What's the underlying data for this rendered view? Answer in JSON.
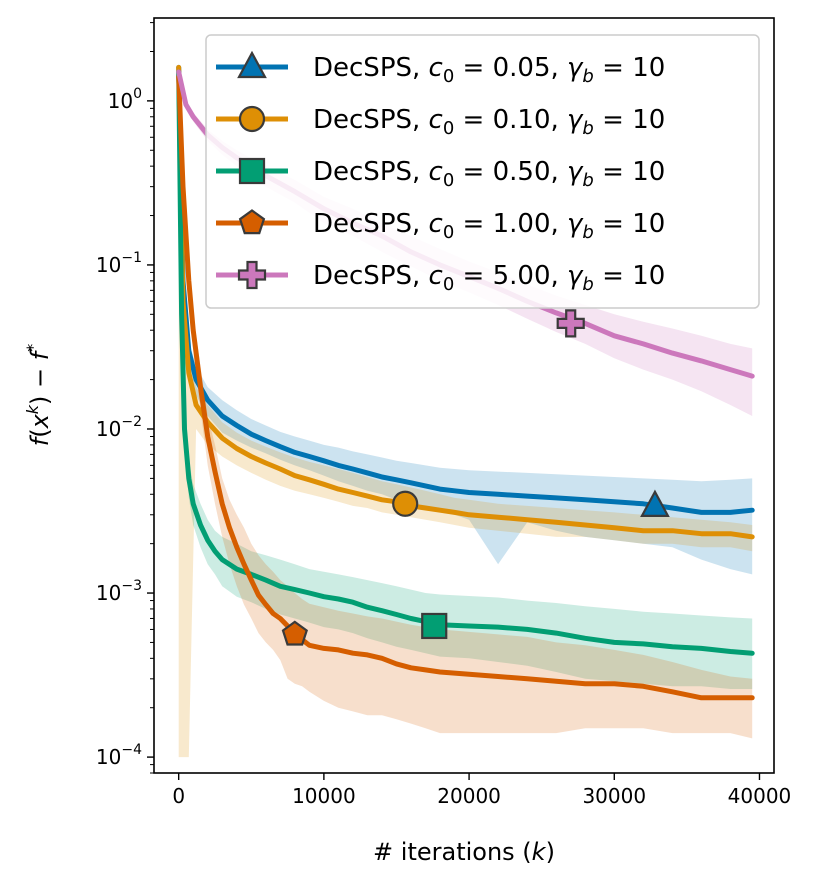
{
  "chart_data": {
    "type": "line",
    "xlabel": "# iterations (k)",
    "ylabel": "f(x^k) − f*",
    "xlim": [
      -1700,
      41000
    ],
    "ylim": [
      8e-05,
      3.2
    ],
    "yscale": "log",
    "x_ticks": [
      0,
      10000,
      20000,
      30000,
      40000
    ],
    "y_ticks": [
      {
        "value": 1,
        "base": "10",
        "exp": "0"
      },
      {
        "value": 0.1,
        "base": "10",
        "exp": "−1"
      },
      {
        "value": 0.01,
        "base": "10",
        "exp": "−2"
      },
      {
        "value": 0.001,
        "base": "10",
        "exp": "−3"
      },
      {
        "value": 0.0001,
        "base": "10",
        "exp": "−4"
      }
    ],
    "legend_position": "top-right",
    "grid": false,
    "series": [
      {
        "name": "DecSPS, c0 = 0.05, γb = 10",
        "legend_parts": {
          "name": "DecSPS",
          "c0": "0.05",
          "gamma": "10"
        },
        "color": "#0173b2",
        "marker": "triangle",
        "marker_at": [
          32800,
          0.0034
        ],
        "x": [
          0,
          300,
          700,
          1200,
          2000,
          3000,
          4000,
          5000,
          6000,
          7000,
          8000,
          9000,
          10000,
          11000,
          12000,
          13000,
          14000,
          15000,
          16000,
          17000,
          18000,
          19000,
          20000,
          22000,
          24000,
          26000,
          28000,
          30000,
          32000,
          34000,
          36000,
          38000,
          39500
        ],
        "y": [
          1.6,
          0.08,
          0.03,
          0.02,
          0.015,
          0.012,
          0.0105,
          0.0093,
          0.0085,
          0.0078,
          0.0072,
          0.0068,
          0.0064,
          0.006,
          0.0057,
          0.0054,
          0.0051,
          0.0049,
          0.0047,
          0.0045,
          0.0043,
          0.0042,
          0.0041,
          0.004,
          0.0039,
          0.0038,
          0.0037,
          0.0036,
          0.0035,
          0.0033,
          0.0031,
          0.0031,
          0.0032
        ],
        "lower": [
          1.5,
          0.07,
          0.025,
          0.016,
          0.012,
          0.0095,
          0.0085,
          0.0077,
          0.0071,
          0.0065,
          0.006,
          0.0056,
          0.0052,
          0.0048,
          0.0045,
          0.0042,
          0.004,
          0.0037,
          0.0035,
          0.0033,
          0.0031,
          0.003,
          0.0028,
          0.0015,
          0.0027,
          0.0024,
          0.0022,
          0.0021,
          0.002,
          0.0019,
          0.0016,
          0.0014,
          0.0013
        ],
        "upper": [
          1.7,
          0.09,
          0.035,
          0.024,
          0.018,
          0.015,
          0.013,
          0.0115,
          0.0105,
          0.0096,
          0.009,
          0.0085,
          0.008,
          0.0077,
          0.0073,
          0.007,
          0.0067,
          0.0064,
          0.0062,
          0.006,
          0.0058,
          0.0057,
          0.0056,
          0.0055,
          0.0054,
          0.0053,
          0.0052,
          0.0051,
          0.005,
          0.0049,
          0.0048,
          0.0049,
          0.005
        ]
      },
      {
        "name": "DecSPS, c0 = 0.10, γb = 10",
        "legend_parts": {
          "name": "DecSPS",
          "c0": "0.10",
          "gamma": "10"
        },
        "color": "#de8f05",
        "marker": "circle",
        "marker_at": [
          15600,
          0.0035
        ],
        "x": [
          0,
          300,
          700,
          1200,
          2000,
          3000,
          4000,
          5000,
          6000,
          7000,
          8000,
          9000,
          10000,
          11000,
          12000,
          13000,
          14000,
          15000,
          16000,
          17000,
          18000,
          19000,
          20000,
          22000,
          24000,
          26000,
          28000,
          30000,
          32000,
          34000,
          36000,
          38000,
          39500
        ],
        "y": [
          1.6,
          0.06,
          0.022,
          0.014,
          0.011,
          0.0088,
          0.0076,
          0.0068,
          0.0062,
          0.0057,
          0.0052,
          0.0049,
          0.0046,
          0.0043,
          0.0041,
          0.0039,
          0.0037,
          0.0036,
          0.0034,
          0.0033,
          0.0032,
          0.0031,
          0.003,
          0.0029,
          0.0028,
          0.0027,
          0.0026,
          0.0025,
          0.0024,
          0.0024,
          0.0023,
          0.0023,
          0.0022
        ],
        "lower": [
          0.0001,
          0.0001,
          0.0001,
          0.01,
          0.008,
          0.0068,
          0.006,
          0.0054,
          0.0049,
          0.0045,
          0.0042,
          0.004,
          0.0038,
          0.0036,
          0.0034,
          0.0033,
          0.0031,
          0.003,
          0.0029,
          0.0028,
          0.0027,
          0.0026,
          0.0025,
          0.0024,
          0.0023,
          0.0022,
          0.0022,
          0.0021,
          0.002,
          0.002,
          0.0019,
          0.0019,
          0.0018
        ],
        "upper": [
          1.7,
          0.08,
          0.028,
          0.018,
          0.014,
          0.011,
          0.0095,
          0.0085,
          0.0078,
          0.0072,
          0.0067,
          0.0063,
          0.006,
          0.0057,
          0.0054,
          0.0051,
          0.0048,
          0.0046,
          0.0044,
          0.0042,
          0.004,
          0.0038,
          0.0037,
          0.0035,
          0.0034,
          0.0033,
          0.0032,
          0.0031,
          0.003,
          0.0029,
          0.0028,
          0.0027,
          0.0026
        ]
      },
      {
        "name": "DecSPS, c0 = 0.50, γb = 10",
        "legend_parts": {
          "name": "DecSPS",
          "c0": "0.50",
          "gamma": "10"
        },
        "color": "#029e73",
        "marker": "square",
        "marker_at": [
          17600,
          0.00063
        ],
        "x": [
          0,
          200,
          400,
          700,
          1000,
          1500,
          2000,
          2500,
          3000,
          4000,
          5000,
          6000,
          7000,
          8000,
          9000,
          10000,
          11000,
          12000,
          13000,
          14000,
          15000,
          16000,
          17000,
          18000,
          20000,
          22000,
          24000,
          26000,
          28000,
          30000,
          32000,
          34000,
          36000,
          38000,
          39500
        ],
        "y": [
          1.5,
          0.05,
          0.01,
          0.005,
          0.0035,
          0.0026,
          0.0021,
          0.0018,
          0.0016,
          0.0014,
          0.0013,
          0.0012,
          0.0011,
          0.00105,
          0.001,
          0.00095,
          0.00092,
          0.00088,
          0.00082,
          0.00078,
          0.00074,
          0.0007,
          0.00067,
          0.00064,
          0.00063,
          0.00062,
          0.0006,
          0.00057,
          0.00053,
          0.0005,
          0.00049,
          0.00047,
          0.00046,
          0.00044,
          0.00043
        ],
        "lower": [
          1.4,
          0.04,
          0.0075,
          0.0038,
          0.0026,
          0.0019,
          0.0015,
          0.0013,
          0.0011,
          0.00095,
          0.00088,
          0.0008,
          0.00074,
          0.0007,
          0.00066,
          0.00062,
          0.0006,
          0.00057,
          0.00053,
          0.0005,
          0.00047,
          0.00045,
          0.00043,
          0.00041,
          0.0004,
          0.00038,
          0.00036,
          0.00033,
          0.0003,
          0.00029,
          0.00028,
          0.00027,
          0.00027,
          0.00026,
          0.00026
        ],
        "upper": [
          1.6,
          0.06,
          0.013,
          0.0065,
          0.0046,
          0.0035,
          0.0028,
          0.0024,
          0.0022,
          0.002,
          0.0018,
          0.0017,
          0.0016,
          0.0015,
          0.0014,
          0.00135,
          0.0013,
          0.00125,
          0.0012,
          0.00115,
          0.0011,
          0.00105,
          0.001,
          0.00098,
          0.00096,
          0.00094,
          0.0009,
          0.00087,
          0.00083,
          0.0008,
          0.00077,
          0.00075,
          0.00073,
          0.00071,
          0.0007
        ]
      },
      {
        "name": "DecSPS, c0 = 1.00, γb = 10",
        "legend_parts": {
          "name": "DecSPS",
          "c0": "1.00",
          "gamma": "10"
        },
        "color": "#d55e00",
        "marker": "pentagon",
        "marker_at": [
          8000,
          0.00056
        ],
        "x": [
          0,
          300,
          700,
          1000,
          1500,
          2000,
          2500,
          3000,
          3500,
          4000,
          4500,
          5000,
          5500,
          6000,
          6500,
          7000,
          7500,
          8000,
          8500,
          9000,
          10000,
          11000,
          12000,
          13000,
          14000,
          15000,
          16000,
          17000,
          18000,
          20000,
          22000,
          24000,
          26000,
          28000,
          30000,
          32000,
          34000,
          36000,
          38000,
          39500
        ],
        "y": [
          1.4,
          0.3,
          0.08,
          0.04,
          0.018,
          0.009,
          0.0055,
          0.0035,
          0.0025,
          0.0019,
          0.0015,
          0.0012,
          0.00097,
          0.00085,
          0.00075,
          0.0007,
          0.00063,
          0.00057,
          0.00052,
          0.00048,
          0.00046,
          0.00045,
          0.00043,
          0.00042,
          0.0004,
          0.00037,
          0.00035,
          0.00034,
          0.00033,
          0.00032,
          0.00031,
          0.0003,
          0.00029,
          0.00028,
          0.00028,
          0.00027,
          0.00025,
          0.00023,
          0.00023,
          0.00023
        ],
        "lower": [
          1.3,
          0.25,
          0.06,
          0.03,
          0.013,
          0.006,
          0.0035,
          0.0022,
          0.0015,
          0.0011,
          0.00085,
          0.0007,
          0.00057,
          0.0005,
          0.00045,
          0.00039,
          0.0003,
          0.00028,
          0.00027,
          0.00025,
          0.00022,
          0.0002,
          0.00019,
          0.00018,
          0.00018,
          0.00017,
          0.00016,
          0.00015,
          0.00014,
          0.00014,
          0.00014,
          0.00014,
          0.00014,
          0.00015,
          0.00015,
          0.00015,
          0.00014,
          0.00014,
          0.00014,
          0.00013
        ],
        "upper": [
          1.5,
          0.35,
          0.1,
          0.05,
          0.024,
          0.012,
          0.008,
          0.005,
          0.0037,
          0.003,
          0.0025,
          0.002,
          0.0017,
          0.0015,
          0.00135,
          0.0012,
          0.0011,
          0.001,
          0.00092,
          0.00086,
          0.00082,
          0.00078,
          0.00075,
          0.00072,
          0.0007,
          0.00067,
          0.00064,
          0.00062,
          0.0006,
          0.00058,
          0.00056,
          0.00054,
          0.0005,
          0.00048,
          0.00045,
          0.00042,
          0.00038,
          0.00034,
          0.00031,
          0.0003
        ]
      },
      {
        "name": "DecSPS, c0 = 5.00, γb = 10",
        "legend_parts": {
          "name": "DecSPS",
          "c0": "5.00",
          "gamma": "10"
        },
        "color": "#cc78bc",
        "marker": "plus",
        "marker_at": [
          27000,
          0.044
        ],
        "x": [
          0,
          500,
          1000,
          2000,
          3000,
          4000,
          6000,
          8000,
          10000,
          12000,
          14000,
          16000,
          18000,
          20000,
          22000,
          24000,
          26000,
          28000,
          30000,
          32000,
          34000,
          36000,
          38000,
          39500
        ],
        "y": [
          1.5,
          0.95,
          0.8,
          0.62,
          0.52,
          0.45,
          0.35,
          0.28,
          0.22,
          0.18,
          0.15,
          0.12,
          0.1,
          0.085,
          0.072,
          0.06,
          0.051,
          0.044,
          0.037,
          0.033,
          0.029,
          0.026,
          0.023,
          0.021
        ],
        "lower": [
          1.45,
          0.9,
          0.75,
          0.57,
          0.47,
          0.4,
          0.3,
          0.24,
          0.18,
          0.15,
          0.12,
          0.098,
          0.08,
          0.068,
          0.057,
          0.047,
          0.039,
          0.033,
          0.027,
          0.023,
          0.02,
          0.017,
          0.014,
          0.012
        ],
        "upper": [
          1.55,
          1.0,
          0.85,
          0.67,
          0.57,
          0.5,
          0.4,
          0.33,
          0.26,
          0.22,
          0.18,
          0.15,
          0.125,
          0.105,
          0.09,
          0.076,
          0.065,
          0.057,
          0.05,
          0.045,
          0.041,
          0.037,
          0.033,
          0.031
        ]
      }
    ]
  }
}
